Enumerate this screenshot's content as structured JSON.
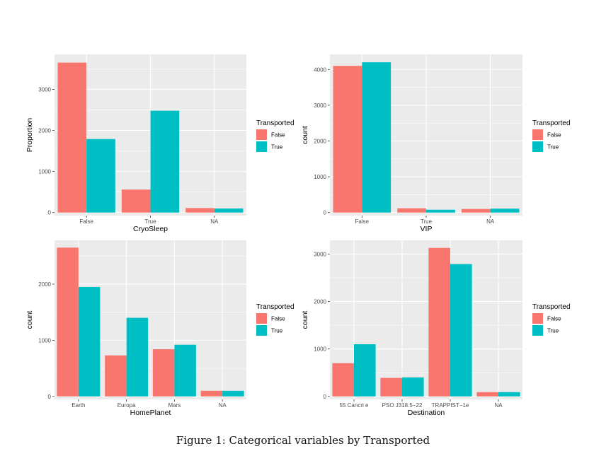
{
  "caption": "Figure 1: Categorical variables by Transported",
  "legend": {
    "title": "Transported",
    "entries": [
      "False",
      "True"
    ]
  },
  "colors": {
    "False": "#F8766D",
    "True": "#00BFC4",
    "panel": "#EBEBEB",
    "grid": "#FFFFFF"
  },
  "chart_data": [
    {
      "type": "bar",
      "xlabel": "CryoSleep",
      "ylabel": "Proportion",
      "categories": [
        "False",
        "True",
        "NA"
      ],
      "series": [
        {
          "name": "False",
          "values": [
            3650,
            560,
            110
          ]
        },
        {
          "name": "True",
          "values": [
            1790,
            2480,
            100
          ]
        }
      ],
      "yticks": [
        0,
        1000,
        2000,
        3000
      ],
      "ylim": [
        0,
        3850
      ],
      "legend": "right"
    },
    {
      "type": "bar",
      "xlabel": "VIP",
      "ylabel": "count",
      "categories": [
        "False",
        "True",
        "NA"
      ],
      "series": [
        {
          "name": "False",
          "values": [
            4100,
            120,
            100
          ]
        },
        {
          "name": "True",
          "values": [
            4200,
            80,
            110
          ]
        }
      ],
      "yticks": [
        0,
        1000,
        2000,
        3000,
        4000
      ],
      "ylim": [
        0,
        4420
      ],
      "legend": "right"
    },
    {
      "type": "bar",
      "xlabel": "HomePlanet",
      "ylabel": "count",
      "categories": [
        "Earth",
        "Europa",
        "Mars",
        "NA"
      ],
      "series": [
        {
          "name": "False",
          "values": [
            2650,
            730,
            840,
            100
          ]
        },
        {
          "name": "True",
          "values": [
            1950,
            1400,
            920,
            100
          ]
        }
      ],
      "yticks": [
        0,
        1000,
        2000
      ],
      "ylim": [
        0,
        2780
      ],
      "legend": "right"
    },
    {
      "type": "bar",
      "xlabel": "Destination",
      "ylabel": "count",
      "categories": [
        "55 Cancri e",
        "PSO J318.5−22",
        "TRAPPIST−1e",
        "NA"
      ],
      "series": [
        {
          "name": "False",
          "values": [
            700,
            390,
            3130,
            90
          ]
        },
        {
          "name": "True",
          "values": [
            1100,
            400,
            2790,
            90
          ]
        }
      ],
      "yticks": [
        0,
        1000,
        2000,
        3000
      ],
      "ylim": [
        0,
        3290
      ],
      "legend": "right"
    }
  ]
}
